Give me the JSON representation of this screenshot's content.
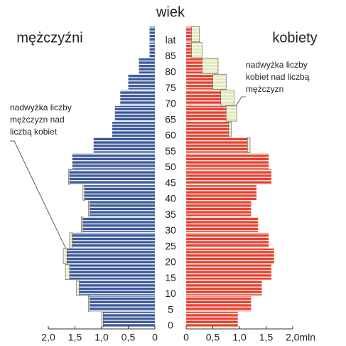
{
  "chart_data": {
    "type": "pyramid",
    "title": "wiek",
    "left_label": "mężczyźni",
    "right_label": "kobiety",
    "annotation_left": [
      "nadwyżka liczby",
      "mężczyzn nad",
      "liczbą kobiet"
    ],
    "annotation_right": [
      "nadwyżka liczby",
      "kobiet nad liczbą",
      "mężczyzn"
    ],
    "age_ticks": [
      0,
      5,
      10,
      15,
      20,
      25,
      30,
      35,
      40,
      45,
      50,
      55,
      60,
      65,
      70,
      75,
      80,
      85,
      {
        "value": 90,
        "label": "lat"
      }
    ],
    "ylim": [
      0,
      95
    ],
    "xlim": [
      0,
      2
    ],
    "xticks_left": [
      {
        "value": 2,
        "label": "2,0"
      },
      {
        "value": 1.5,
        "label": "1,5"
      },
      {
        "value": 1,
        "label": "1,0"
      },
      {
        "value": 0.5,
        "label": "0,5"
      },
      0
    ],
    "xticks_right": [
      0,
      {
        "value": 0.5,
        "label": "0,5"
      },
      {
        "value": 1,
        "label": "1,0"
      },
      {
        "value": 1.5,
        "label": "1,5"
      },
      {
        "value": 2,
        "label": "2,0mln"
      }
    ],
    "series": [
      {
        "name": "mężczyźni",
        "color": "#3d5a98",
        "values": [
          1.0,
          1.25,
          1.47,
          1.68,
          1.72,
          1.6,
          1.38,
          1.25,
          1.35,
          1.62,
          1.55,
          1.15,
          0.8,
          0.75,
          0.65,
          0.5,
          0.3,
          0.1,
          0.1
        ]
      },
      {
        "name": "kobiety",
        "color": "#e8412f",
        "values": [
          0.97,
          1.22,
          1.42,
          1.6,
          1.65,
          1.55,
          1.35,
          1.22,
          1.32,
          1.6,
          1.55,
          1.2,
          0.85,
          0.95,
          0.9,
          0.75,
          0.6,
          0.3,
          0.25
        ]
      }
    ],
    "surplus_color": "#e2eab8"
  }
}
